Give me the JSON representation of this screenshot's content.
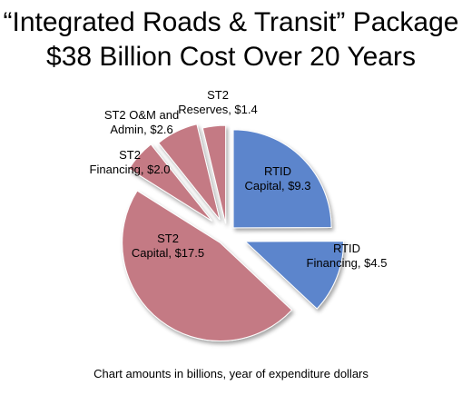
{
  "chart_data": {
    "type": "pie",
    "title": "“Integrated Roads & Transit” Package",
    "subtitle": "$38 Billion Cost Over 20 Years",
    "footnote": "Chart amounts in billions, year of expenditure dollars",
    "slices": [
      {
        "line1": "RTID",
        "line2": "Capital, $9.3",
        "value": 9.3,
        "group": "RTID",
        "color": "#5b85cc"
      },
      {
        "line1": "RTID",
        "line2": "Financing, $4.5",
        "value": 4.5,
        "group": "RTID",
        "color": "#5b85cc"
      },
      {
        "line1": "ST2",
        "line2": "Capital, $17.5",
        "value": 17.5,
        "group": "ST2",
        "color": "#c47a84"
      },
      {
        "line1": "ST2",
        "line2": "Financing, $2.0",
        "value": 2.0,
        "group": "ST2",
        "color": "#c47a84"
      },
      {
        "line1": "ST2 O&M and",
        "line2": "Admin, $2.6",
        "value": 2.6,
        "group": "ST2",
        "color": "#c47a84"
      },
      {
        "line1": "ST2",
        "line2": "Reserves, $1.4",
        "value": 1.4,
        "group": "ST2",
        "color": "#c47a84"
      }
    ]
  }
}
